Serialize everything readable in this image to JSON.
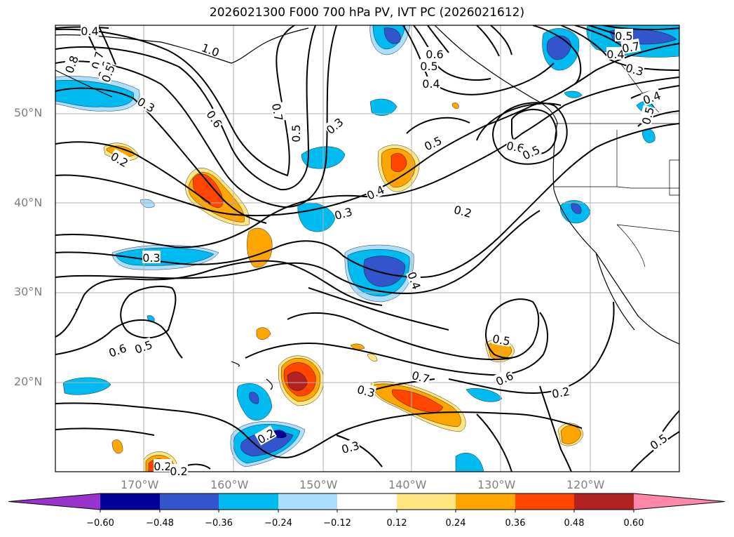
{
  "title": "2026021300 F000 700 hPa PV, IVT PC (2026021612)",
  "lat_labels": [
    "50°N",
    "40°N",
    "30°N",
    "20°N"
  ],
  "lon_labels": [
    "170°W",
    "160°W",
    "150°W",
    "140°W",
    "130°W",
    "120°W"
  ],
  "colorbar": {
    "ticks": [
      "−0.60",
      "−0.48",
      "−0.36",
      "−0.24",
      "−0.12",
      "0.12",
      "0.24",
      "0.36",
      "0.48",
      "0.60"
    ],
    "colors": [
      "#9933cc",
      "#000099",
      "#3355cc",
      "#00bbf0",
      "#aadfff",
      "#ffffff",
      "#ffe680",
      "#ffa500",
      "#ff4500",
      "#b22222",
      "#ff88aa"
    ]
  },
  "contour_labels": [
    "0.4",
    "0.8",
    "0.7",
    "0.6",
    "0.5",
    "1.0",
    "0.3",
    "0.6",
    "0.7",
    "0.5",
    "0.2",
    "0.3",
    "0.5",
    "0.4",
    "0.3",
    "0.2",
    "0.3",
    "0.4",
    "0.5",
    "0.6",
    "0.7",
    "0.6",
    "0.5",
    "0.4",
    "0.3",
    "0.4",
    "0.5",
    "0.6",
    "0.5",
    "0.4",
    "0.5",
    "0.7",
    "0.5",
    "0.6",
    "0.3",
    "0.2",
    "0.3",
    "0.2",
    "0.2",
    "0.5",
    "0.2"
  ]
}
